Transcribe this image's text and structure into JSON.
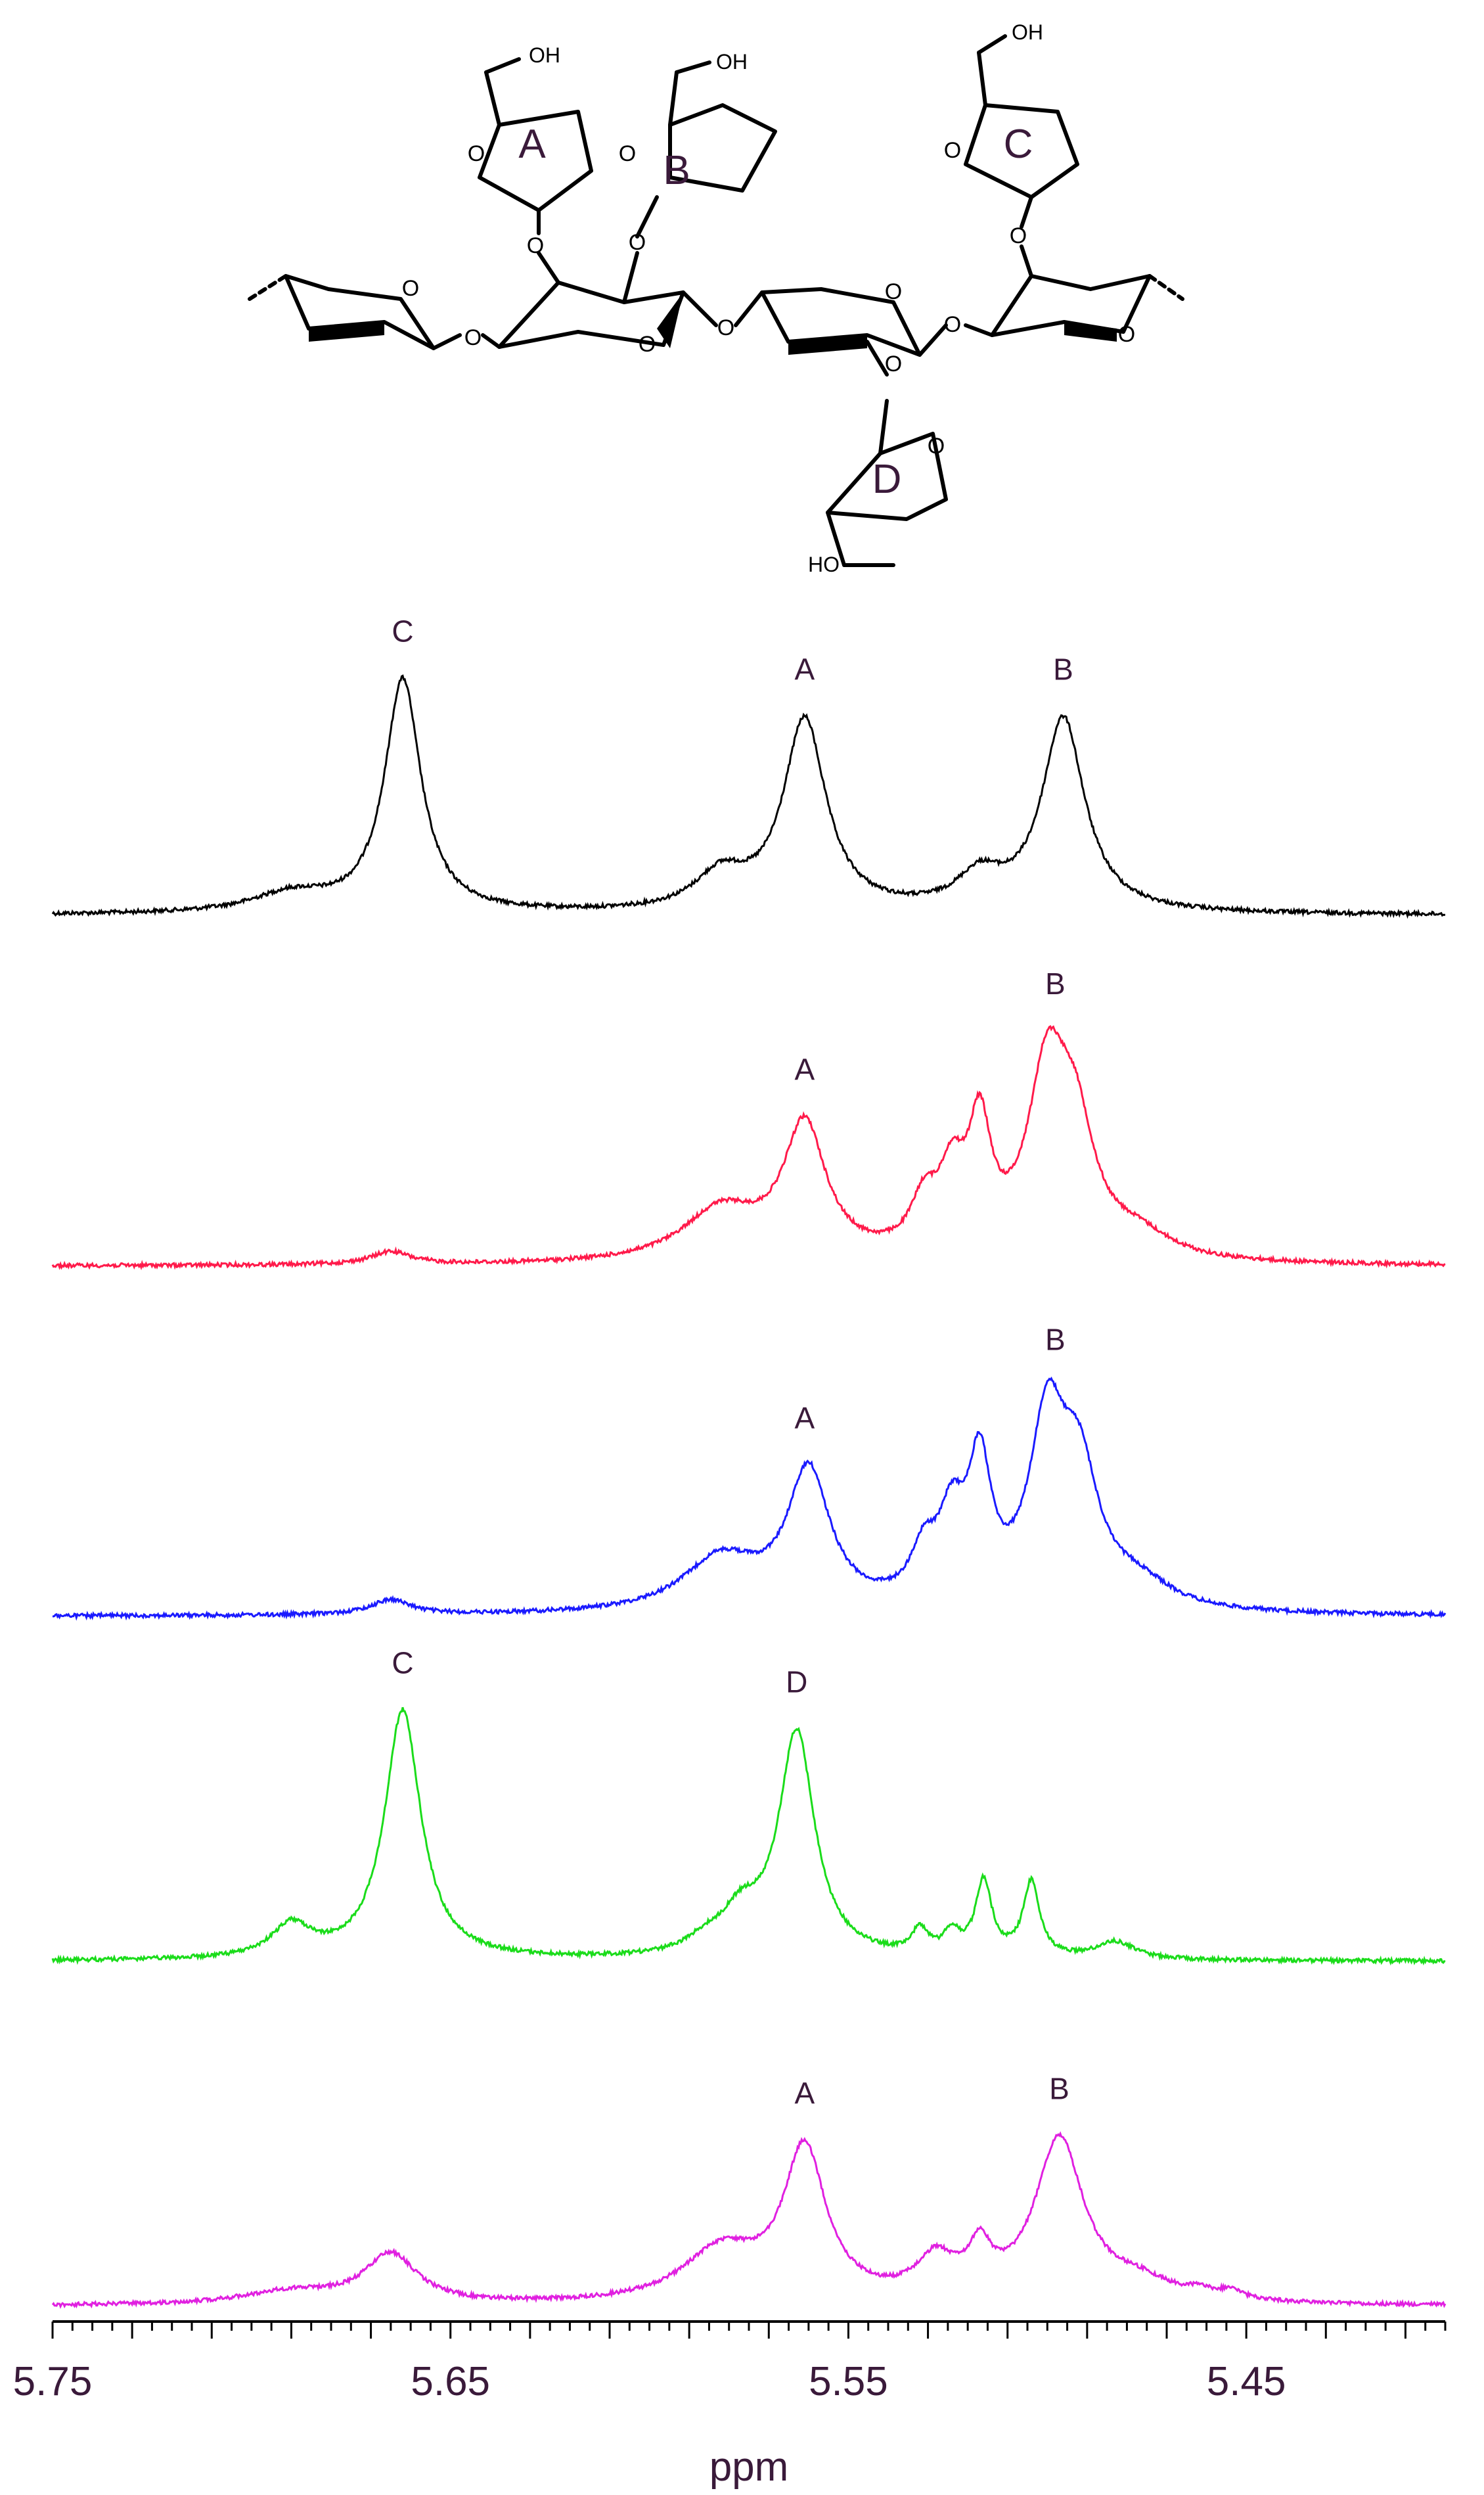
{
  "structure": {
    "atoms": {
      "oxygen": "O",
      "hydroxyl": "OH",
      "hydroxyl_alt": "HO"
    },
    "rings": [
      "A",
      "B",
      "C",
      "D"
    ]
  },
  "chart_data": {
    "type": "line",
    "xlabel": "ppm",
    "xlim": [
      5.75,
      5.4
    ],
    "x_reversed": true,
    "xticks": [
      "5.75",
      "5.65",
      "5.55",
      "5.45"
    ],
    "grid": false,
    "series": [
      {
        "color": "#000000",
        "labels": [
          {
            "text": "C",
            "x": 5.662
          },
          {
            "text": "A",
            "x": 5.561
          },
          {
            "text": "B",
            "x": 5.496
          }
        ],
        "peaks": [
          [
            5.662,
            1.0,
            0.0055
          ],
          [
            5.69,
            0.08,
            0.012
          ],
          [
            5.561,
            0.82,
            0.0065
          ],
          [
            5.582,
            0.15,
            0.008
          ],
          [
            5.496,
            0.83,
            0.0065
          ],
          [
            5.517,
            0.14,
            0.007
          ]
        ]
      },
      {
        "color": "#ff1a4a",
        "labels": [
          {
            "text": "A",
            "x": 5.561
          },
          {
            "text": "B",
            "x": 5.498
          }
        ],
        "peaks": [
          [
            5.665,
            0.06,
            0.006
          ],
          [
            5.561,
            0.62,
            0.0065
          ],
          [
            5.582,
            0.24,
            0.012
          ],
          [
            5.531,
            0.22,
            0.004
          ],
          [
            5.524,
            0.33,
            0.004
          ],
          [
            5.517,
            0.56,
            0.0035
          ],
          [
            5.5,
            0.82,
            0.006
          ],
          [
            5.493,
            0.52,
            0.006
          ],
          [
            5.477,
            0.1,
            0.01
          ]
        ]
      },
      {
        "color": "#1a1aff",
        "labels": [
          {
            "text": "A",
            "x": 5.561
          },
          {
            "text": "B",
            "x": 5.498
          }
        ],
        "peaks": [
          [
            5.665,
            0.07,
            0.006
          ],
          [
            5.56,
            0.64,
            0.0065
          ],
          [
            5.582,
            0.25,
            0.012
          ],
          [
            5.531,
            0.22,
            0.004
          ],
          [
            5.524,
            0.36,
            0.004
          ],
          [
            5.517,
            0.62,
            0.0035
          ],
          [
            5.5,
            0.82,
            0.0055
          ],
          [
            5.492,
            0.58,
            0.006
          ],
          [
            5.477,
            0.11,
            0.01
          ]
        ]
      },
      {
        "color": "#1adc1a",
        "labels": [
          {
            "text": "C",
            "x": 5.662
          },
          {
            "text": "D",
            "x": 5.563
          }
        ],
        "peaks": [
          [
            5.662,
            1.0,
            0.0055
          ],
          [
            5.69,
            0.13,
            0.006
          ],
          [
            5.563,
            0.9,
            0.0055
          ],
          [
            5.577,
            0.15,
            0.006
          ],
          [
            5.586,
            0.05,
            0.006
          ],
          [
            5.532,
            0.1,
            0.0025
          ],
          [
            5.524,
            0.09,
            0.0025
          ],
          [
            5.516,
            0.3,
            0.0025
          ],
          [
            5.504,
            0.3,
            0.0025
          ],
          [
            5.483,
            0.07,
            0.006
          ]
        ]
      },
      {
        "color": "#e020e0",
        "labels": [
          {
            "text": "A",
            "x": 5.561
          },
          {
            "text": "B",
            "x": 5.497
          }
        ],
        "peaks": [
          [
            5.665,
            0.23,
            0.008
          ],
          [
            5.69,
            0.06,
            0.015
          ],
          [
            5.561,
            0.7,
            0.0065
          ],
          [
            5.582,
            0.24,
            0.012
          ],
          [
            5.528,
            0.18,
            0.006
          ],
          [
            5.517,
            0.2,
            0.0035
          ],
          [
            5.497,
            0.76,
            0.0075
          ],
          [
            5.477,
            0.08,
            0.01
          ],
          [
            5.462,
            0.03,
            0.004
          ],
          [
            5.454,
            0.04,
            0.004
          ]
        ]
      }
    ]
  }
}
